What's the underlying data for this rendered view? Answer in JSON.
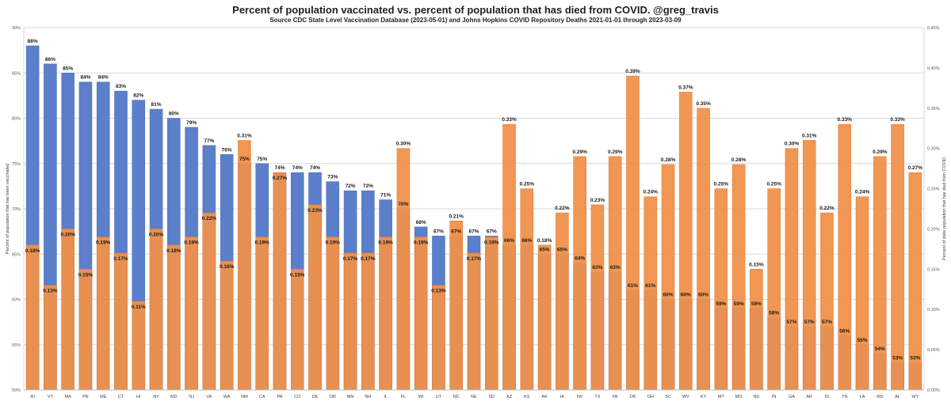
{
  "chart_data": {
    "type": "bar",
    "title": "Percent of population vaccinated vs. percent of population that has died from COVID.  @greg_travis",
    "subtitle": "Source CDC State Level Vaccination Database (2023-05-01) and Johns Hopkins COVID Repository Deaths 2021-01-01 through 2023-03-09",
    "ylabel_left": "Percent of population that has been vaccinated",
    "ylabel_right": "Percent of state population that has died from COVID",
    "ylim_left": [
      50,
      90
    ],
    "ylim_right": [
      0,
      0.45
    ],
    "yticks_left": [
      "50%",
      "55%",
      "60%",
      "65%",
      "70%",
      "75%",
      "80%",
      "85%",
      "90%"
    ],
    "yticks_right": [
      "0.00%",
      "0.05%",
      "0.10%",
      "0.15%",
      "0.20%",
      "0.25%",
      "0.30%",
      "0.35%",
      "0.40%",
      "0.45%"
    ],
    "grid": true,
    "categories": [
      "RI",
      "VT",
      "MA",
      "PR",
      "ME",
      "CT",
      "HI",
      "NY",
      "MD",
      "NJ",
      "VA",
      "WA",
      "NM",
      "CA",
      "PA",
      "CO",
      "DE",
      "OR",
      "MN",
      "NH",
      "IL",
      "FL",
      "WI",
      "UT",
      "NC",
      "NE",
      "SD",
      "AZ",
      "KS",
      "AK",
      "IA",
      "NV",
      "TX",
      "MI",
      "OK",
      "OH",
      "SC",
      "WV",
      "KY",
      "MT",
      "MO",
      "ND",
      "IN",
      "GA",
      "AR",
      "ID",
      "TN",
      "LA",
      "MS",
      "AL",
      "WY"
    ],
    "series": [
      {
        "axis": "left",
        "color": "#5b7fca",
        "values": [
          88,
          86,
          85,
          84,
          84,
          83,
          82,
          81,
          80,
          79,
          77,
          76,
          75,
          75,
          74,
          74,
          74,
          73,
          72,
          72,
          71,
          70,
          68,
          67,
          67,
          67,
          67,
          66,
          66,
          65,
          65,
          64,
          63,
          63,
          61,
          61,
          60,
          60,
          60,
          59,
          59,
          59,
          58,
          57,
          57,
          57,
          56,
          55,
          54,
          53,
          53
        ],
        "labels": [
          "88%",
          "86%",
          "85%",
          "84%",
          "84%",
          "83%",
          "82%",
          "81%",
          "80%",
          "79%",
          "77%",
          "76%",
          "75%",
          "75%",
          "74%",
          "74%",
          "74%",
          "73%",
          "72%",
          "72%",
          "71%",
          "70%",
          "68%",
          "67%",
          "67%",
          "67%",
          "67%",
          "66%",
          "66%",
          "65%",
          "65%",
          "64%",
          "63%",
          "63%",
          "61%",
          "61%",
          "60%",
          "60%",
          "60%",
          "59%",
          "59%",
          "59%",
          "58%",
          "57%",
          "57%",
          "57%",
          "56%",
          "55%",
          "54%",
          "53%",
          "53%"
        ]
      },
      {
        "axis": "right",
        "color": "#f0914a",
        "values": [
          0.18,
          0.13,
          0.2,
          0.15,
          0.19,
          0.17,
          0.11,
          0.2,
          0.18,
          0.19,
          0.22,
          0.16,
          0.31,
          0.19,
          0.27,
          0.15,
          0.23,
          0.19,
          0.17,
          0.17,
          0.19,
          0.3,
          0.19,
          0.13,
          0.21,
          0.17,
          0.19,
          0.33,
          0.25,
          0.18,
          0.22,
          0.29,
          0.23,
          0.29,
          0.39,
          0.24,
          0.28,
          0.37,
          0.35,
          0.25,
          0.28,
          0.15,
          0.25,
          0.3,
          0.31,
          0.22,
          0.33,
          0.24,
          0.29,
          0.33,
          0.27
        ],
        "labels": [
          "0.18%",
          "0.13%",
          "0.20%",
          "0.15%",
          "0.19%",
          "0.17%",
          "0.11%",
          "0.20%",
          "0.18%",
          "0.19%",
          "0.22%",
          "0.16%",
          "0.31%",
          "0.19%",
          "0.27%",
          "0.15%",
          "0.23%",
          "0.19%",
          "0.17%",
          "0.17%",
          "0.19%",
          "0.30%",
          "0.19%",
          "0.13%",
          "0.21%",
          "0.17%",
          "0.19%",
          "0.33%",
          "0.25%",
          "0.18%",
          "0.22%",
          "0.29%",
          "0.23%",
          "0.29%",
          "0.39%",
          "0.24%",
          "0.28%",
          "0.37%",
          "0.35%",
          "0.25%",
          "0.28%",
          "0.15%",
          "0.25%",
          "0.30%",
          "0.31%",
          "0.22%",
          "0.33%",
          "0.24%",
          "0.29%",
          "0.33%",
          "0.27%"
        ]
      }
    ]
  }
}
